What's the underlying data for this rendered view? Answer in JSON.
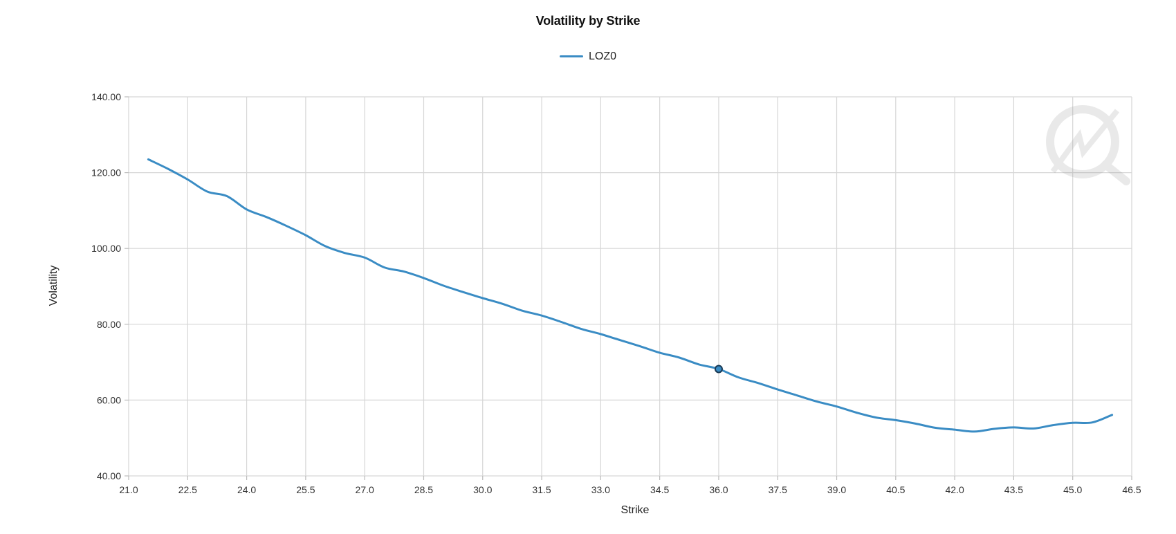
{
  "chart_data": {
    "type": "line",
    "title": "Volatility by Strike",
    "xlabel": "Strike",
    "ylabel": "Volatility",
    "xlim": [
      21.0,
      46.5
    ],
    "ylim": [
      40.0,
      140.0
    ],
    "x_ticks": [
      "21.0",
      "22.5",
      "24.0",
      "25.5",
      "27.0",
      "28.5",
      "30.0",
      "31.5",
      "33.0",
      "34.5",
      "36.0",
      "37.5",
      "39.0",
      "40.5",
      "42.0",
      "43.5",
      "45.0",
      "46.5"
    ],
    "y_ticks": [
      "40.00",
      "60.00",
      "80.00",
      "100.00",
      "120.00",
      "140.00"
    ],
    "grid": true,
    "legend_position": "top-center",
    "series": [
      {
        "name": "LOZ0",
        "color": "#3a8cc4",
        "x": [
          21.5,
          22.0,
          22.5,
          23.0,
          23.5,
          24.0,
          24.5,
          25.0,
          25.5,
          26.0,
          26.5,
          27.0,
          27.5,
          28.0,
          28.5,
          29.0,
          29.5,
          30.0,
          30.5,
          31.0,
          31.5,
          32.0,
          32.5,
          33.0,
          33.5,
          34.0,
          34.5,
          35.0,
          35.5,
          36.0,
          36.5,
          37.0,
          37.5,
          38.0,
          38.5,
          39.0,
          39.5,
          40.0,
          40.5,
          41.0,
          41.5,
          42.0,
          42.5,
          43.0,
          43.5,
          44.0,
          44.5,
          45.0,
          45.5,
          46.0
        ],
        "y": [
          123.5,
          121.0,
          118.2,
          115.0,
          113.8,
          110.3,
          108.3,
          106.0,
          103.5,
          100.6,
          98.8,
          97.6,
          95.0,
          93.9,
          92.2,
          90.2,
          88.5,
          86.9,
          85.4,
          83.6,
          82.3,
          80.6,
          78.8,
          77.4,
          75.8,
          74.2,
          72.5,
          71.2,
          69.4,
          68.2,
          66.0,
          64.5,
          62.8,
          61.2,
          59.6,
          58.3,
          56.7,
          55.4,
          54.7,
          53.8,
          52.7,
          52.2,
          51.7,
          52.4,
          52.8,
          52.5,
          53.4,
          54.0,
          54.1,
          56.1
        ]
      }
    ],
    "highlighted_point": {
      "x": 36.0,
      "y": 68.2
    }
  }
}
